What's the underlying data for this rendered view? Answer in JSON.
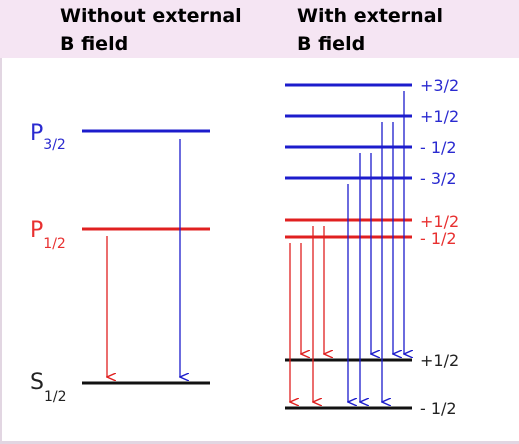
{
  "headers": {
    "left": [
      "Without external",
      "B field"
    ],
    "right": [
      "With external",
      "B field"
    ]
  },
  "levels_left": {
    "p32": {
      "main": "P",
      "sub": "3/2"
    },
    "p12": {
      "main": "P",
      "sub": "1/2"
    },
    "s12": {
      "main": "S",
      "sub": "1/2"
    }
  },
  "right_labels": {
    "p32_top": "+3/2",
    "p32_2": "+1/2",
    "p32_3": "- 1/2",
    "p32_4": "- 3/2",
    "p12_top": "+1/2",
    "p12_bottom": "- 1/2",
    "s12_top": "+1/2",
    "s12_bottom": "- 1/2"
  },
  "colors": {
    "blue": "#1c1ccc",
    "red": "#e02020",
    "black": "#111111",
    "label_blue": "#2a2ad0",
    "label_red": "#e83030",
    "header_bg": "#f5e5f3"
  }
}
